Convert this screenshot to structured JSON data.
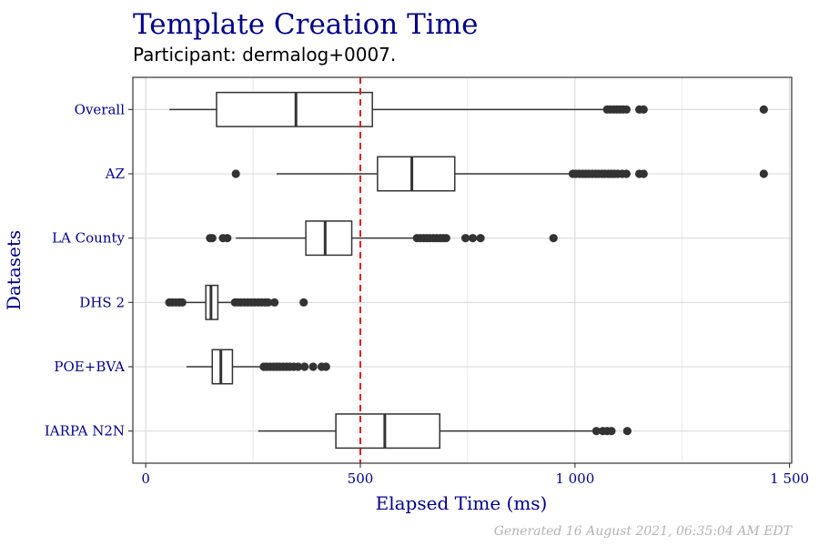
{
  "colors": {
    "title": "#00008B",
    "subtitle": "#000000",
    "axis_text": "#00008B",
    "box_stroke": "#333333",
    "outlier": "#333333",
    "grid": "#d9d9d9",
    "reference_line": "#e31a1c",
    "caption": "#b3b3b3",
    "panel_border": "#333333"
  },
  "chart_data": {
    "type": "boxplot",
    "orientation": "horizontal",
    "title": "Template Creation Time",
    "subtitle": "Participant: dermalog+0007.",
    "xlabel": "Elapsed Time (ms)",
    "ylabel": "Datasets",
    "xlim": [
      -30,
      1505
    ],
    "x_ticks": [
      0,
      500,
      1000,
      1500
    ],
    "x_tick_labels": [
      "0",
      "500",
      "1 000",
      "1 500"
    ],
    "grid": true,
    "reference_line": {
      "x": 500,
      "style": "dashed"
    },
    "caption": "Generated 16 August 2021, 06:35:04 AM EDT",
    "categories": [
      "Overall",
      "AZ",
      "LA County",
      "DHS 2",
      "POE+BVA",
      "IARPA N2N"
    ],
    "boxes": [
      {
        "name": "Overall",
        "whisker_low": 55,
        "q1": 165,
        "median": 350,
        "q3": 528,
        "whisker_high": 1070,
        "outliers": [
          1075,
          1082,
          1090,
          1098,
          1105,
          1112,
          1120,
          1150,
          1160,
          1440
        ]
      },
      {
        "name": "AZ",
        "whisker_low": 305,
        "q1": 540,
        "median": 620,
        "q3": 720,
        "whisker_high": 990,
        "outliers": [
          210,
          995,
          1002,
          1010,
          1018,
          1025,
          1032,
          1040,
          1048,
          1055,
          1063,
          1070,
          1078,
          1085,
          1092,
          1100,
          1110,
          1120,
          1150,
          1160,
          1440
        ]
      },
      {
        "name": "LA County",
        "whisker_low": 210,
        "q1": 373,
        "median": 418,
        "q3": 480,
        "whisker_high": 628,
        "outliers": [
          150,
          155,
          180,
          190,
          632,
          640,
          648,
          655,
          662,
          670,
          678,
          686,
          693,
          700,
          745,
          762,
          780,
          950
        ]
      },
      {
        "name": "DHS 2",
        "whisker_low": 90,
        "q1": 140,
        "median": 152,
        "q3": 168,
        "whisker_high": 203,
        "outliers": [
          55,
          62,
          70,
          78,
          85,
          208,
          215,
          222,
          230,
          238,
          246,
          254,
          262,
          270,
          278,
          285,
          300,
          368
        ]
      },
      {
        "name": "POE+BVA",
        "whisker_low": 95,
        "q1": 155,
        "median": 175,
        "q3": 202,
        "whisker_high": 270,
        "outliers": [
          275,
          282,
          290,
          298,
          305,
          312,
          320,
          328,
          336,
          345,
          355,
          370,
          390,
          410,
          420
        ]
      },
      {
        "name": "IARPA N2N",
        "whisker_low": 262,
        "q1": 443,
        "median": 557,
        "q3": 685,
        "whisker_high": 1042,
        "outliers": [
          1050,
          1065,
          1075,
          1085,
          1122
        ]
      }
    ]
  }
}
